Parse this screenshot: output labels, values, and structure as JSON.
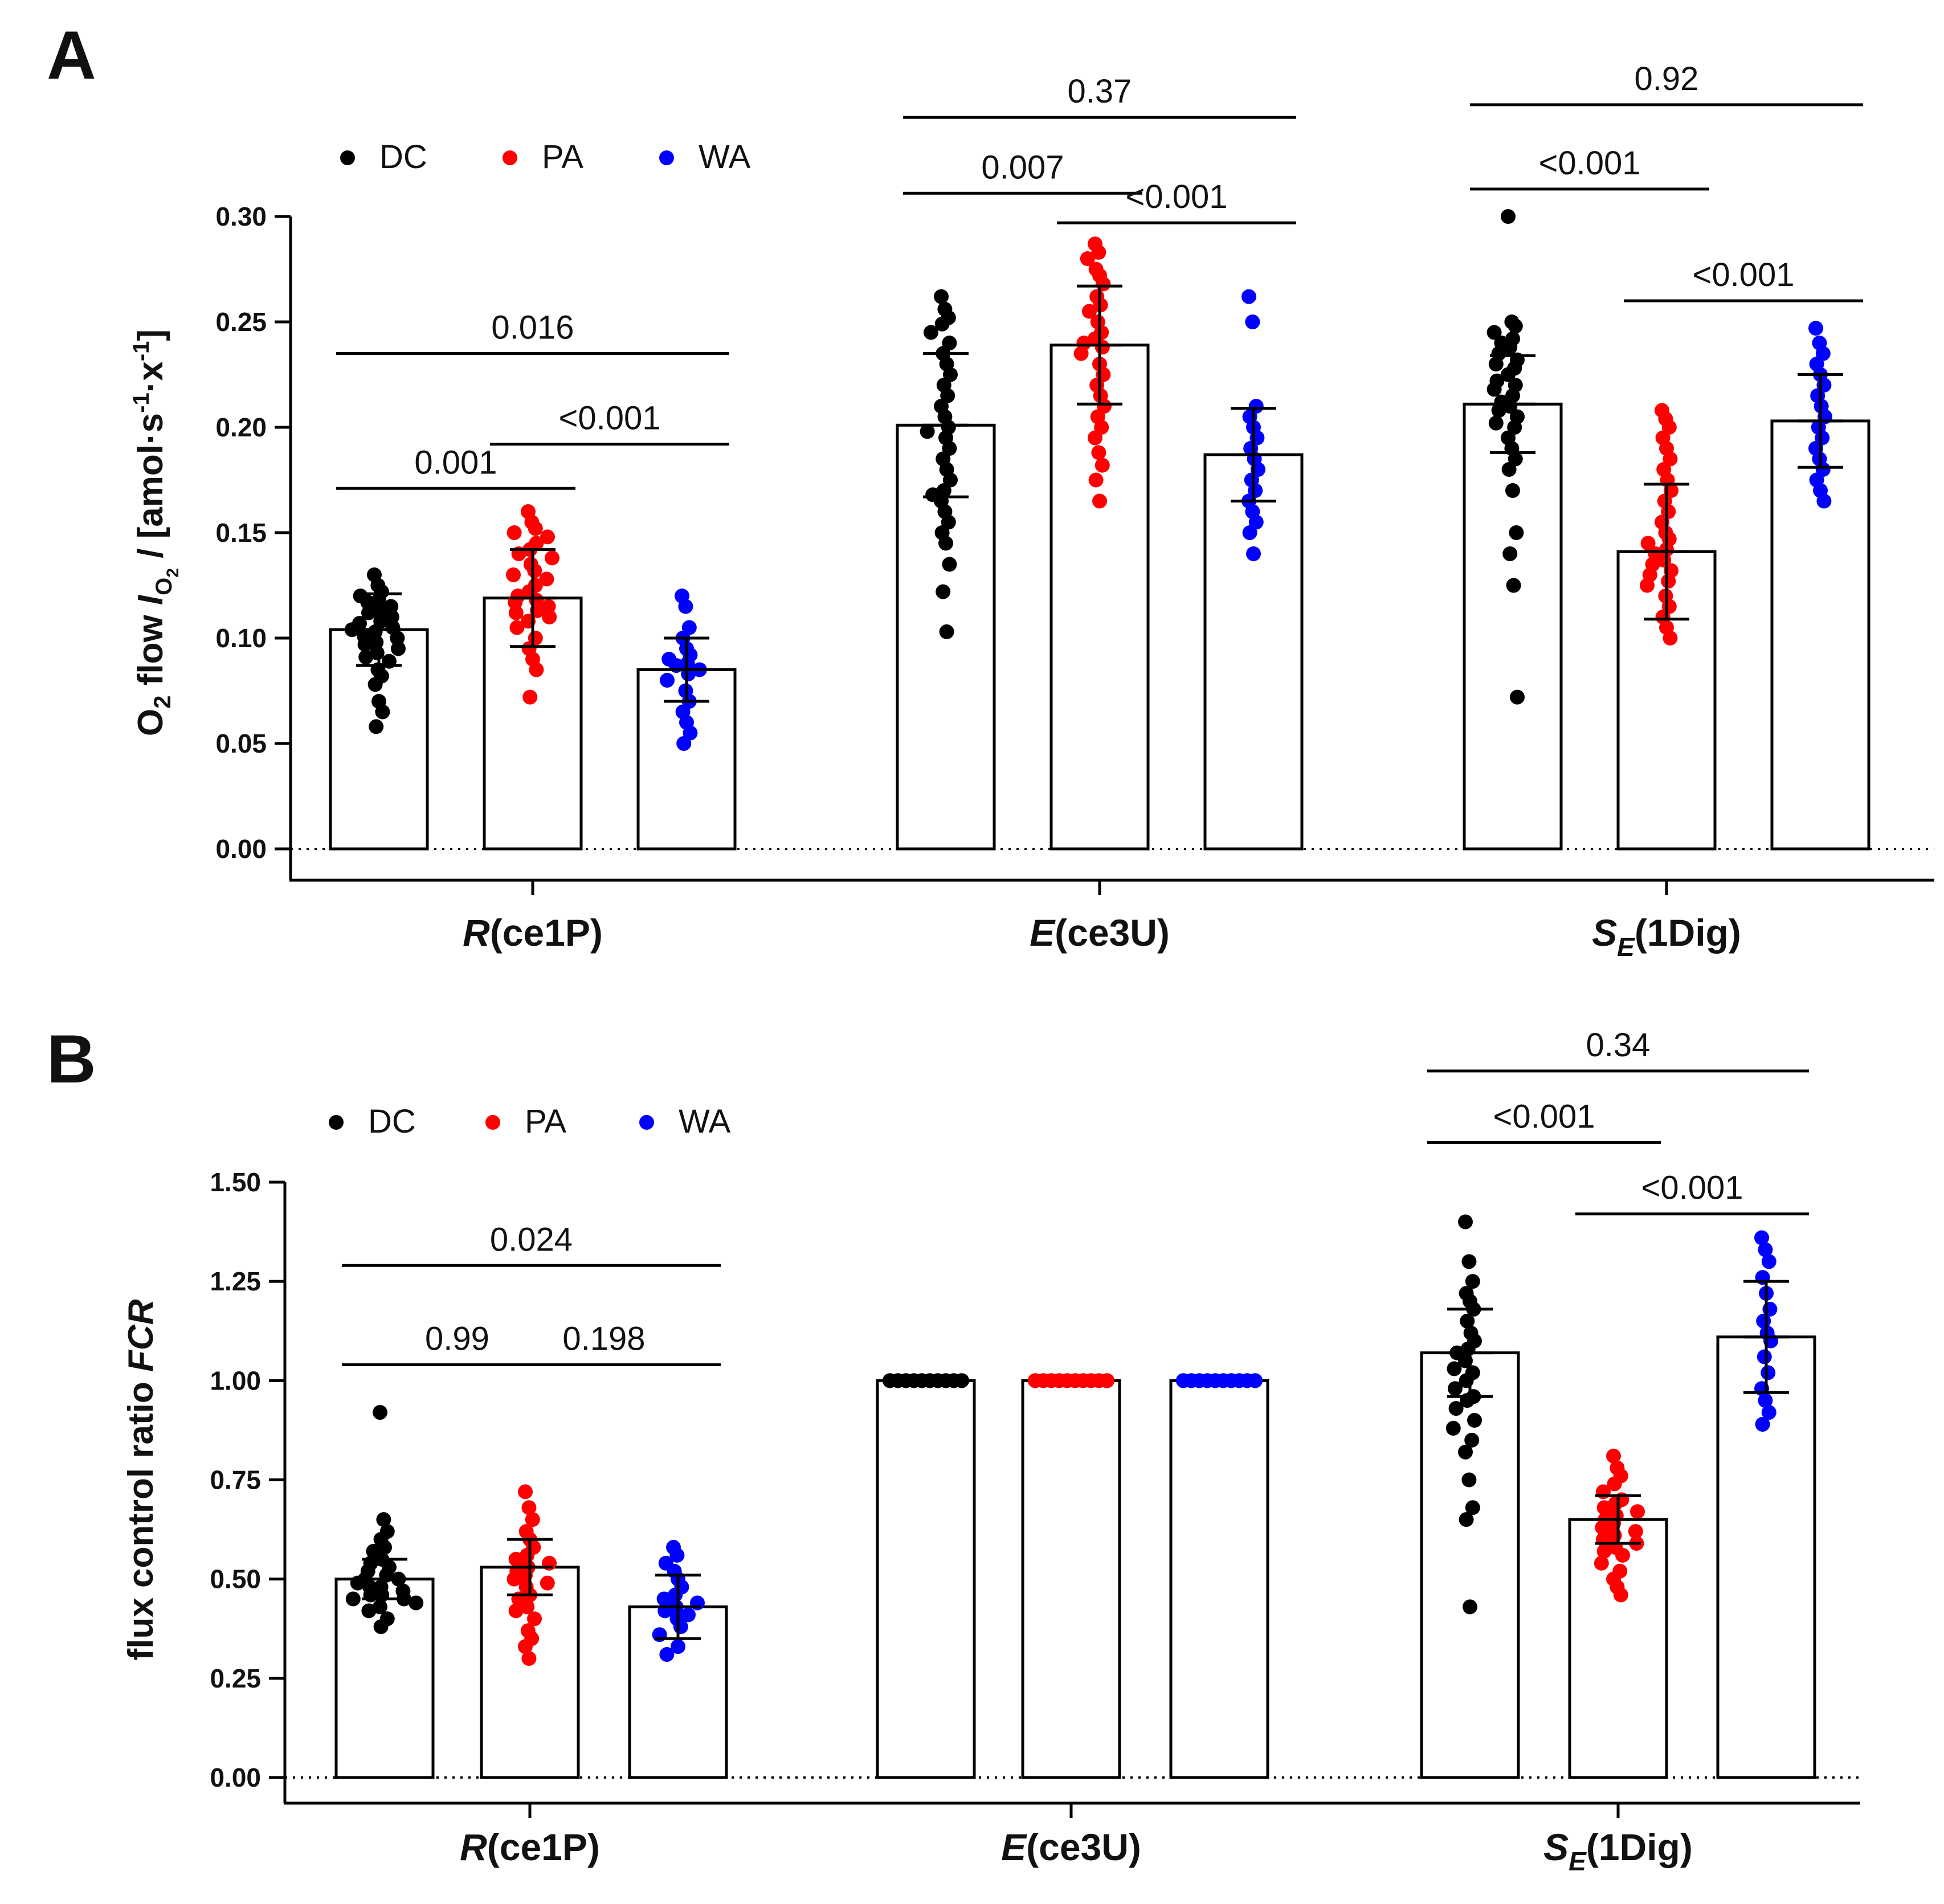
{
  "chart_data": [
    {
      "panel": "A",
      "type": "bar",
      "ylabel_parts": [
        "O",
        "2",
        " flow ",
        "I",
        "O",
        "2",
        " / [amol·s",
        "-1",
        "·x",
        "-1",
        "]"
      ],
      "ylim": [
        0,
        0.3
      ],
      "yticks": [
        "0.00",
        "0.05",
        "0.10",
        "0.15",
        "0.20",
        "0.25",
        "0.30"
      ],
      "yticks_values": [
        0,
        0.05,
        0.1,
        0.15,
        0.2,
        0.25,
        0.3
      ],
      "legend": [
        {
          "name": "DC",
          "color": "#000000"
        },
        {
          "name": "PA",
          "color": "#ff0000"
        },
        {
          "name": "WA",
          "color": "#0000ff"
        }
      ],
      "categories": [
        {
          "italic": "R",
          "sub": "",
          "rest": "(ce1P)"
        },
        {
          "italic": "E",
          "sub": "",
          "rest": "(ce3U)"
        },
        {
          "italic": "S",
          "sub": "E",
          "rest": "(1Dig)"
        }
      ],
      "series": [
        {
          "name": "DC",
          "color": "#000000",
          "values": [
            0.104,
            0.201,
            0.211
          ],
          "sd": [
            0.017,
            0.034,
            0.023
          ]
        },
        {
          "name": "PA",
          "color": "#ff0000",
          "values": [
            0.119,
            0.239,
            0.141
          ],
          "sd": [
            0.023,
            0.028,
            0.032
          ]
        },
        {
          "name": "WA",
          "color": "#0000ff",
          "values": [
            0.085,
            0.187,
            0.203
          ],
          "sd": [
            0.015,
            0.022,
            0.022
          ]
        }
      ],
      "points": [
        [
          [
            0.13,
            0.125,
            0.122,
            0.12,
            0.118,
            0.117,
            0.115,
            0.113,
            0.112,
            0.11,
            0.108,
            0.107,
            0.105,
            0.104,
            0.103,
            0.101,
            0.1,
            0.098,
            0.097,
            0.095,
            0.093,
            0.091,
            0.089,
            0.085,
            0.082,
            0.078,
            0.07,
            0.065,
            0.058
          ],
          [
            0.16,
            0.155,
            0.152,
            0.15,
            0.148,
            0.145,
            0.142,
            0.14,
            0.138,
            0.135,
            0.132,
            0.13,
            0.128,
            0.125,
            0.122,
            0.12,
            0.118,
            0.117,
            0.115,
            0.113,
            0.112,
            0.11,
            0.108,
            0.105,
            0.1,
            0.095,
            0.09,
            0.085,
            0.072
          ],
          [
            0.12,
            0.115,
            0.105,
            0.1,
            0.095,
            0.092,
            0.09,
            0.088,
            0.087,
            0.085,
            0.083,
            0.08,
            0.075,
            0.07,
            0.065,
            0.06,
            0.055,
            0.05
          ]
        ],
        [
          [
            0.262,
            0.256,
            0.252,
            0.249,
            0.245,
            0.24,
            0.235,
            0.23,
            0.225,
            0.22,
            0.215,
            0.21,
            0.205,
            0.2,
            0.198,
            0.195,
            0.19,
            0.185,
            0.18,
            0.175,
            0.17,
            0.168,
            0.165,
            0.16,
            0.155,
            0.15,
            0.145,
            0.135,
            0.122,
            0.103
          ],
          [
            0.287,
            0.283,
            0.28,
            0.275,
            0.272,
            0.268,
            0.262,
            0.258,
            0.255,
            0.25,
            0.245,
            0.242,
            0.24,
            0.238,
            0.235,
            0.23,
            0.225,
            0.22,
            0.215,
            0.21,
            0.205,
            0.2,
            0.195,
            0.188,
            0.182,
            0.175,
            0.165
          ],
          [
            0.262,
            0.25,
            0.21,
            0.205,
            0.2,
            0.195,
            0.19,
            0.185,
            0.18,
            0.175,
            0.17,
            0.165,
            0.16,
            0.155,
            0.15,
            0.14
          ]
        ],
        [
          [
            0.3,
            0.25,
            0.248,
            0.245,
            0.242,
            0.24,
            0.238,
            0.235,
            0.232,
            0.23,
            0.228,
            0.225,
            0.222,
            0.22,
            0.218,
            0.215,
            0.212,
            0.21,
            0.208,
            0.205,
            0.202,
            0.2,
            0.195,
            0.19,
            0.185,
            0.18,
            0.17,
            0.15,
            0.14,
            0.125,
            0.072
          ],
          [
            0.208,
            0.204,
            0.2,
            0.195,
            0.19,
            0.185,
            0.18,
            0.175,
            0.17,
            0.165,
            0.16,
            0.155,
            0.15,
            0.147,
            0.145,
            0.142,
            0.14,
            0.137,
            0.135,
            0.132,
            0.13,
            0.127,
            0.125,
            0.12,
            0.115,
            0.11,
            0.105,
            0.1
          ],
          [
            0.247,
            0.24,
            0.235,
            0.23,
            0.225,
            0.22,
            0.215,
            0.21,
            0.205,
            0.2,
            0.195,
            0.19,
            0.185,
            0.18,
            0.175,
            0.17,
            0.165
          ]
        ]
      ],
      "comparisons": [
        {
          "group": 0,
          "from": 0,
          "to": 1,
          "label": "0.001",
          "y": 0.171
        },
        {
          "group": 0,
          "from": 1,
          "to": 2,
          "label": "<0.001",
          "y": 0.192
        },
        {
          "group": 0,
          "from": 0,
          "to": 2,
          "label": "0.016",
          "y": 0.235
        },
        {
          "group": 1,
          "from": 0,
          "to": 1,
          "label": "0.007",
          "y": 0.311
        },
        {
          "group": 1,
          "from": 1,
          "to": 2,
          "label": "<0.001",
          "y": 0.297
        },
        {
          "group": 1,
          "from": 0,
          "to": 2,
          "label": "0.37",
          "y": 0.347
        },
        {
          "group": 2,
          "from": 0,
          "to": 1,
          "label": "<0.001",
          "y": 0.313
        },
        {
          "group": 2,
          "from": 1,
          "to": 2,
          "label": "<0.001",
          "y": 0.26
        },
        {
          "group": 2,
          "from": 0,
          "to": 2,
          "label": "0.92",
          "y": 0.353
        }
      ]
    },
    {
      "panel": "B",
      "type": "bar",
      "ylabel_parts": [
        "flux control ratio ",
        "FCR"
      ],
      "ylim": [
        0,
        1.5
      ],
      "yticks": [
        "0.00",
        "0.25",
        "0.50",
        "0.75",
        "1.00",
        "1.25",
        "1.50"
      ],
      "yticks_values": [
        0,
        0.25,
        0.5,
        0.75,
        1.0,
        1.25,
        1.5
      ],
      "legend": [
        {
          "name": "DC",
          "color": "#000000"
        },
        {
          "name": "PA",
          "color": "#ff0000"
        },
        {
          "name": "WA",
          "color": "#0000ff"
        }
      ],
      "categories": [
        {
          "italic": "R",
          "sub": "",
          "rest": "(ce1P)"
        },
        {
          "italic": "E",
          "sub": "",
          "rest": "(ce3U)"
        },
        {
          "italic": "S",
          "sub": "E",
          "rest": "(1Dig)"
        }
      ],
      "series": [
        {
          "name": "DC",
          "color": "#000000",
          "values": [
            0.5,
            1.0,
            1.07
          ],
          "sd": [
            0.05,
            0,
            0.11
          ]
        },
        {
          "name": "PA",
          "color": "#ff0000",
          "values": [
            0.53,
            1.0,
            0.65
          ],
          "sd": [
            0.07,
            0,
            0.06
          ]
        },
        {
          "name": "WA",
          "color": "#0000ff",
          "values": [
            0.43,
            1.0,
            1.11
          ],
          "sd": [
            0.08,
            0,
            0.14
          ]
        }
      ],
      "points": [
        [
          [
            0.92,
            0.65,
            0.62,
            0.6,
            0.58,
            0.57,
            0.55,
            0.54,
            0.53,
            0.52,
            0.51,
            0.5,
            0.5,
            0.49,
            0.48,
            0.48,
            0.47,
            0.46,
            0.46,
            0.45,
            0.45,
            0.44,
            0.43,
            0.42,
            0.4,
            0.38
          ],
          [
            0.72,
            0.68,
            0.65,
            0.62,
            0.6,
            0.58,
            0.56,
            0.55,
            0.54,
            0.53,
            0.52,
            0.51,
            0.5,
            0.49,
            0.48,
            0.46,
            0.45,
            0.43,
            0.42,
            0.4,
            0.37,
            0.35,
            0.33,
            0.3
          ],
          [
            0.58,
            0.56,
            0.54,
            0.52,
            0.5,
            0.48,
            0.46,
            0.45,
            0.44,
            0.43,
            0.42,
            0.41,
            0.4,
            0.38,
            0.36,
            0.33,
            0.31
          ]
        ],
        [
          [
            1,
            1,
            1,
            1,
            1,
            1,
            1,
            1,
            1,
            1,
            1,
            1,
            1,
            1,
            1,
            1,
            1,
            1,
            1,
            1,
            1,
            1,
            1,
            1,
            1,
            1,
            1,
            1,
            1,
            1
          ],
          [
            1,
            1,
            1,
            1,
            1,
            1,
            1,
            1,
            1,
            1,
            1,
            1,
            1,
            1,
            1,
            1,
            1,
            1,
            1,
            1,
            1,
            1,
            1,
            1,
            1,
            1,
            1,
            1,
            1,
            1
          ],
          [
            1,
            1,
            1,
            1,
            1,
            1,
            1,
            1,
            1,
            1,
            1,
            1,
            1,
            1,
            1,
            1,
            1,
            1,
            1,
            1,
            1,
            1,
            1,
            1,
            1,
            1,
            1,
            1,
            1,
            1
          ]
        ],
        [
          [
            1.4,
            1.3,
            1.25,
            1.22,
            1.2,
            1.18,
            1.15,
            1.12,
            1.1,
            1.08,
            1.07,
            1.05,
            1.03,
            1.02,
            1.0,
            0.98,
            0.96,
            0.95,
            0.93,
            0.9,
            0.88,
            0.85,
            0.82,
            0.75,
            0.68,
            0.65,
            0.43
          ],
          [
            0.81,
            0.78,
            0.76,
            0.74,
            0.72,
            0.7,
            0.69,
            0.68,
            0.67,
            0.66,
            0.65,
            0.64,
            0.63,
            0.62,
            0.61,
            0.6,
            0.59,
            0.58,
            0.57,
            0.56,
            0.54,
            0.52,
            0.5,
            0.48,
            0.46
          ],
          [
            1.36,
            1.33,
            1.3,
            1.26,
            1.22,
            1.18,
            1.15,
            1.12,
            1.1,
            1.06,
            1.02,
            0.98,
            0.95,
            0.92,
            0.89
          ]
        ]
      ],
      "comparisons": [
        {
          "group": 0,
          "from": 0,
          "to": 1,
          "label": "0.99",
          "y": 1.04
        },
        {
          "group": 0,
          "from": 1,
          "to": 2,
          "label": "0.198",
          "y": 1.04
        },
        {
          "group": 0,
          "from": 0,
          "to": 2,
          "label": "0.024",
          "y": 1.29
        },
        {
          "group": 2,
          "from": 0,
          "to": 1,
          "label": "<0.001",
          "y": 1.6
        },
        {
          "group": 2,
          "from": 1,
          "to": 2,
          "label": "<0.001",
          "y": 1.42
        },
        {
          "group": 2,
          "from": 0,
          "to": 2,
          "label": "0.34",
          "y": 1.78
        }
      ]
    }
  ]
}
